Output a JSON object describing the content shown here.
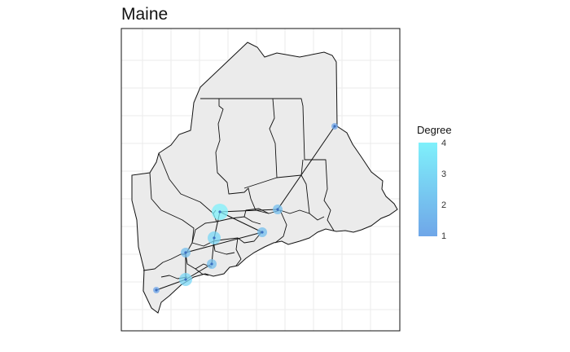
{
  "map": {
    "title": "Maine"
  },
  "legend": {
    "title": "Degree",
    "ticks": [
      "4",
      "3",
      "2",
      "1"
    ],
    "color_low": "#6fa6e8",
    "color_high": "#7ff0fb"
  },
  "colors": {
    "land": "#ebebeb",
    "border": "#111111",
    "edge": "#111111",
    "grid": "#ebebeb"
  },
  "nodes": [
    {
      "id": "n1",
      "degree": 1
    },
    {
      "id": "n2",
      "degree": 2
    },
    {
      "id": "n3",
      "degree": 4
    },
    {
      "id": "n4",
      "degree": 2
    },
    {
      "id": "n5",
      "degree": 3
    },
    {
      "id": "n6",
      "degree": 2
    },
    {
      "id": "n7",
      "degree": 2
    },
    {
      "id": "n8",
      "degree": 3
    },
    {
      "id": "n9",
      "degree": 1
    }
  ],
  "edges": [
    [
      "n1",
      "n2"
    ],
    [
      "n2",
      "n3"
    ],
    [
      "n3",
      "n4"
    ],
    [
      "n3",
      "n5"
    ],
    [
      "n4",
      "n6"
    ],
    [
      "n5",
      "n7"
    ],
    [
      "n6",
      "n8"
    ],
    [
      "n7",
      "n8"
    ],
    [
      "n8",
      "n9"
    ]
  ]
}
